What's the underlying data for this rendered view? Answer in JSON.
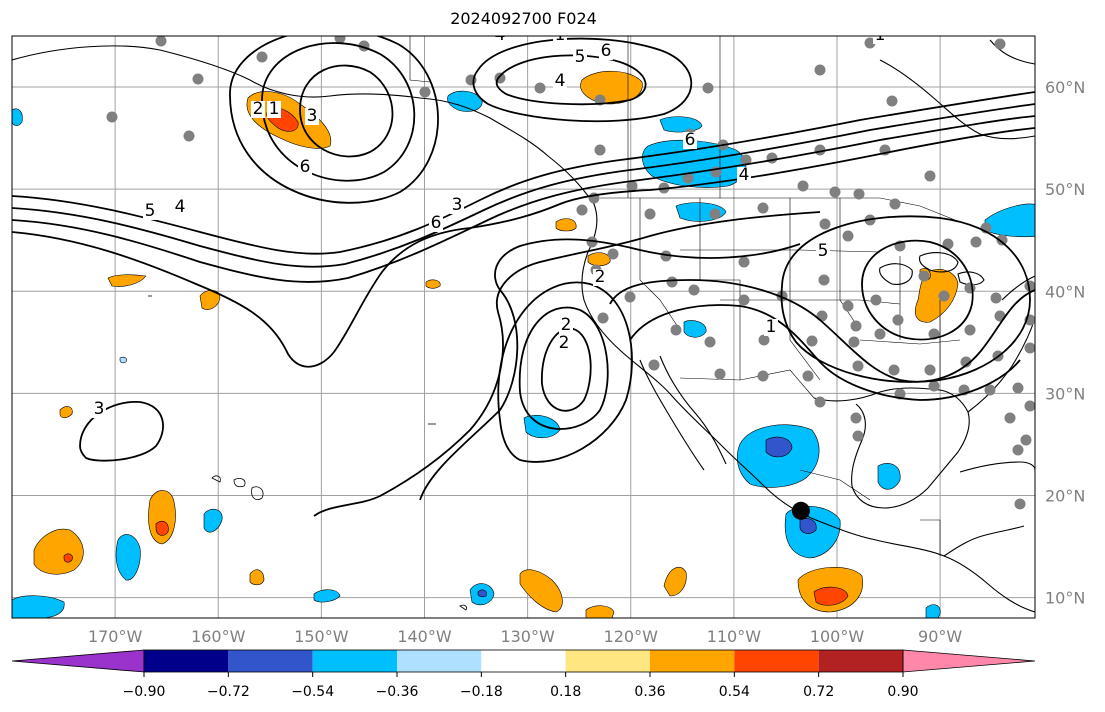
{
  "title": "2024092700 F024",
  "map": {
    "projection": "plate-carree",
    "lon_range": [
      -180,
      -80.8
    ],
    "lat_range": [
      8,
      65
    ],
    "grid": true,
    "lon_labels": [
      "170°W",
      "160°W",
      "150°W",
      "140°W",
      "130°W",
      "120°W",
      "110°W",
      "100°W",
      "90°W"
    ],
    "lon_values": [
      -170,
      -160,
      -150,
      -140,
      -130,
      -120,
      -110,
      -100,
      -90
    ],
    "lat_labels": [
      "60°N",
      "50°N",
      "40°N",
      "30°N",
      "20°N",
      "10°N"
    ],
    "lat_values": [
      60,
      50,
      40,
      30,
      20,
      10
    ],
    "label_color": "#808080",
    "highlight_point": {
      "lon": -103.5,
      "lat": 18.5
    }
  },
  "colorbar": {
    "levels": [
      -0.9,
      -0.72,
      -0.54,
      -0.36,
      -0.18,
      0.18,
      0.36,
      0.54,
      0.72,
      0.9
    ],
    "tick_labels": [
      "−0.90",
      "−0.72",
      "−0.54",
      "−0.36",
      "−0.18",
      "0.18",
      "0.36",
      "0.54",
      "0.72",
      "0.90"
    ],
    "colors": [
      "#9933cc",
      "#00008b",
      "#3355cc",
      "#00bfff",
      "#b0e0ff",
      "#ffffff",
      "#ffe680",
      "#ffa500",
      "#ff4500",
      "#b22222",
      "#ff88aa"
    ],
    "extend": "both"
  },
  "contour_labels": [
    "6",
    "5",
    "4",
    "3",
    "2",
    "1",
    "6",
    "4",
    "5",
    "6",
    "4",
    "6",
    "3",
    "2",
    "5",
    "1",
    "2",
    "2",
    "3",
    "4",
    "1",
    "1"
  ]
}
